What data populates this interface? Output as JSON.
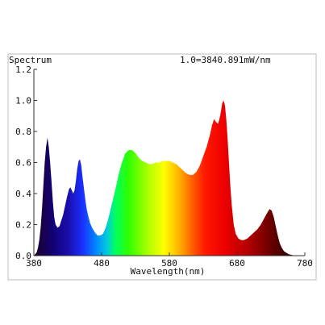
{
  "chart_data": {
    "type": "area",
    "title": "Spectrum",
    "annotation": "1.0=3840.891mW/nm",
    "xlabel": "Wavelength(nm)",
    "ylabel": "",
    "xlim": [
      380,
      780
    ],
    "ylim": [
      0,
      1.2
    ],
    "x_ticks": [
      "380",
      "480",
      "580",
      "680",
      "780"
    ],
    "y_ticks": [
      "0.0",
      "0.2",
      "0.4",
      "0.6",
      "0.8",
      "1.0",
      "1.2"
    ],
    "grid": false,
    "fill": "wavelength-color-gradient",
    "series": [
      {
        "x": [
          380,
          382,
          384,
          386,
          388,
          390,
          392,
          394,
          396,
          398,
          400,
          402,
          404,
          406,
          408,
          410,
          412,
          415,
          418,
          420,
          423,
          426,
          429,
          432,
          434,
          436,
          438,
          440,
          442,
          444,
          446,
          448,
          450,
          452,
          454,
          456,
          458,
          460,
          463,
          466,
          470,
          474,
          478,
          482,
          486,
          490,
          495,
          500,
          505,
          510,
          515,
          520,
          525,
          530,
          535,
          540,
          545,
          550,
          555,
          560,
          565,
          570,
          575,
          580,
          585,
          590,
          595,
          600,
          605,
          610,
          615,
          620,
          625,
          630,
          635,
          640,
          643,
          646,
          649,
          652,
          655,
          658,
          660,
          662,
          664,
          666,
          668,
          670,
          672,
          675,
          678,
          682,
          686,
          690,
          695,
          700,
          705,
          710,
          715,
          720,
          725,
          728,
          731,
          734,
          737,
          740,
          743,
          746,
          749,
          752,
          756,
          760,
          765,
          770,
          775,
          780
        ],
        "y": [
          0.0,
          0.01,
          0.02,
          0.05,
          0.1,
          0.18,
          0.3,
          0.45,
          0.6,
          0.7,
          0.76,
          0.7,
          0.6,
          0.48,
          0.35,
          0.25,
          0.2,
          0.18,
          0.19,
          0.22,
          0.26,
          0.32,
          0.38,
          0.43,
          0.44,
          0.42,
          0.4,
          0.42,
          0.48,
          0.56,
          0.61,
          0.62,
          0.58,
          0.5,
          0.43,
          0.36,
          0.3,
          0.26,
          0.21,
          0.18,
          0.15,
          0.13,
          0.13,
          0.14,
          0.18,
          0.24,
          0.33,
          0.42,
          0.52,
          0.6,
          0.66,
          0.68,
          0.68,
          0.66,
          0.63,
          0.61,
          0.6,
          0.59,
          0.59,
          0.6,
          0.6,
          0.61,
          0.61,
          0.61,
          0.6,
          0.59,
          0.57,
          0.55,
          0.53,
          0.52,
          0.52,
          0.54,
          0.58,
          0.64,
          0.7,
          0.78,
          0.84,
          0.88,
          0.86,
          0.85,
          0.9,
          0.98,
          1.0,
          0.97,
          0.88,
          0.75,
          0.6,
          0.45,
          0.33,
          0.2,
          0.14,
          0.11,
          0.1,
          0.1,
          0.11,
          0.13,
          0.15,
          0.17,
          0.2,
          0.24,
          0.28,
          0.3,
          0.29,
          0.25,
          0.19,
          0.13,
          0.08,
          0.05,
          0.03,
          0.02,
          0.01,
          0.005,
          0.0,
          0.0,
          0.0,
          0.0
        ]
      }
    ]
  }
}
